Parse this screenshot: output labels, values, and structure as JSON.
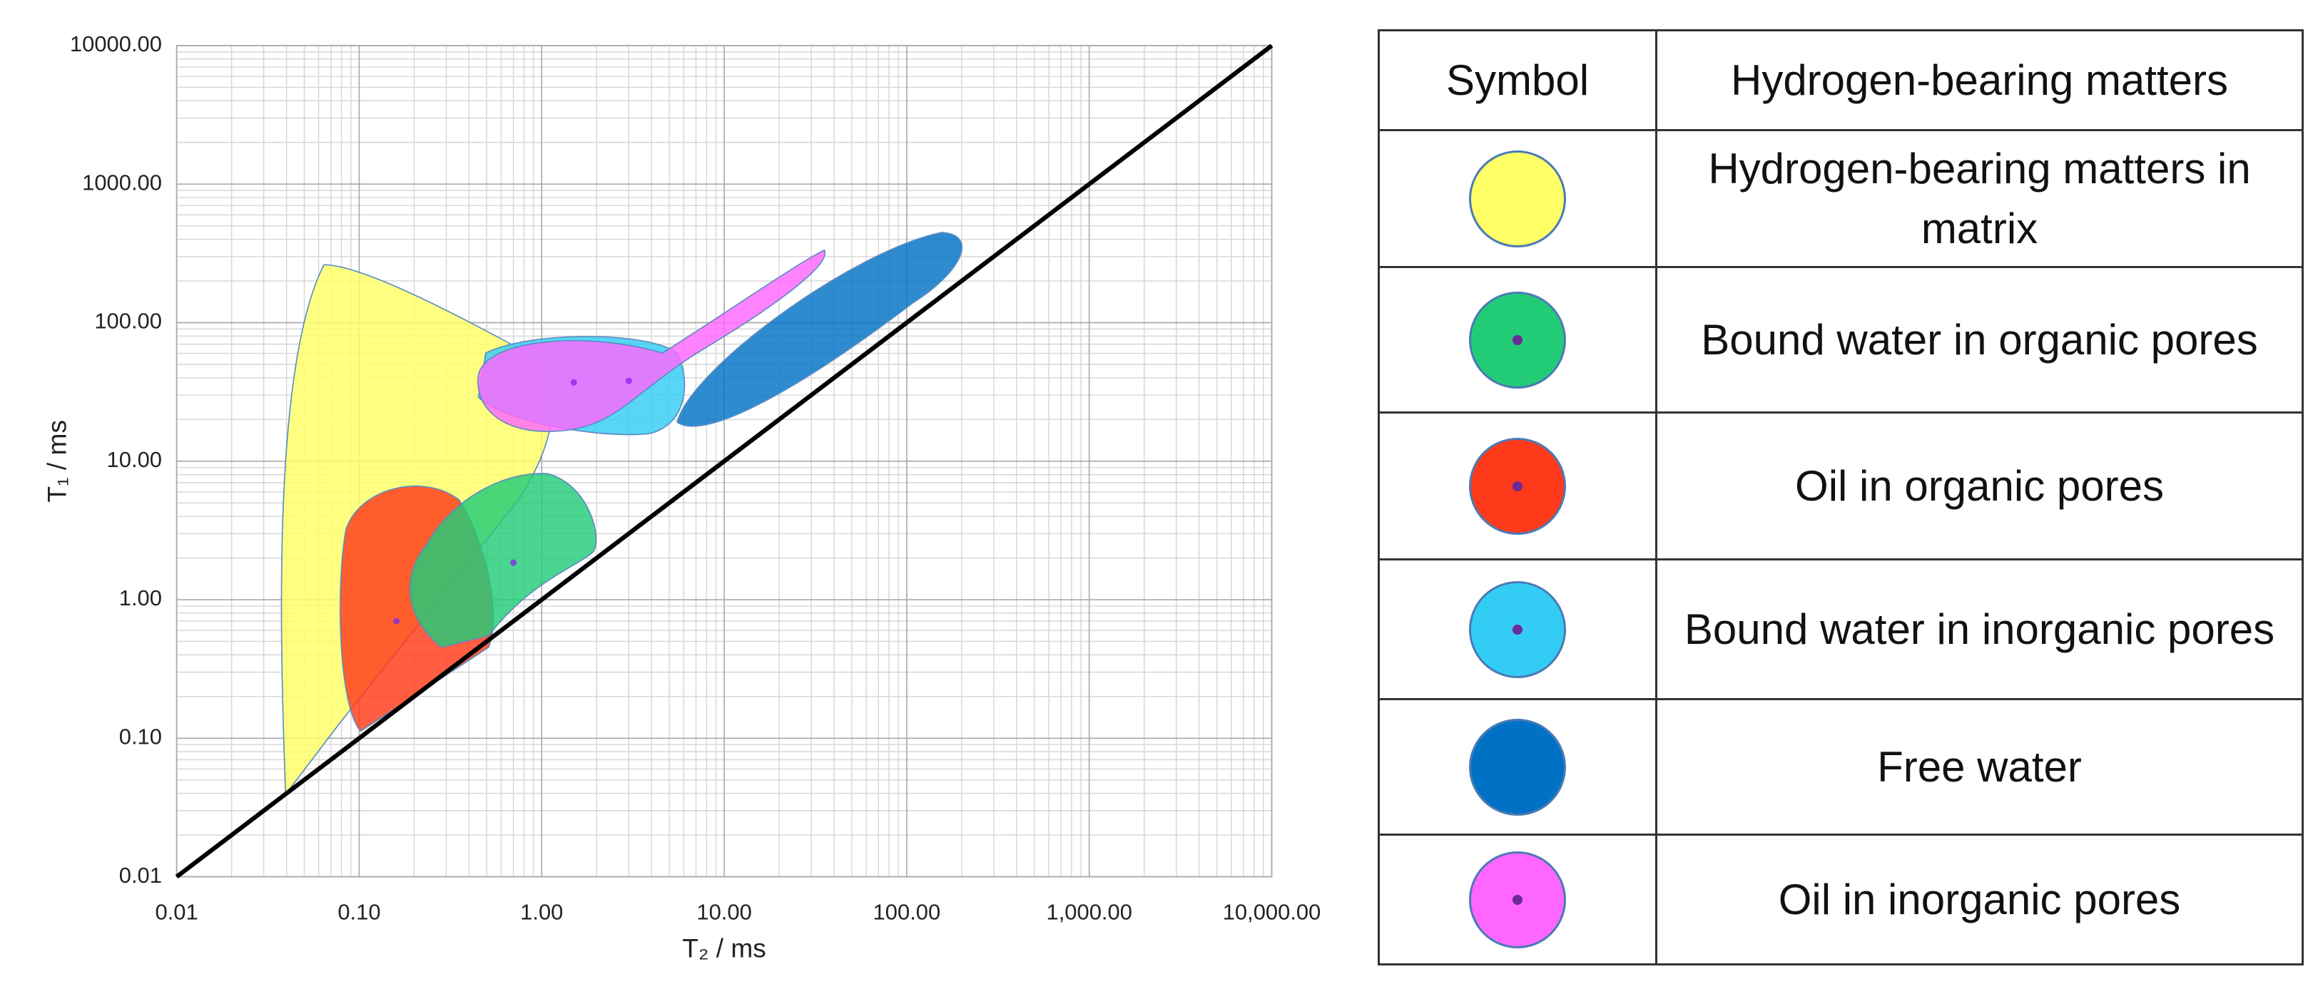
{
  "chart_data": {
    "type": "region",
    "x_label": "T₂ / ms",
    "y_label": "T₁ / ms",
    "log_x": true,
    "log_y": true,
    "grid": true,
    "minor_grid": true,
    "xlim": [
      0.01,
      10000
    ],
    "ylim": [
      0.01,
      10000
    ],
    "xticks": [
      0.01,
      {
        "value": 0.1,
        "label": "0.10"
      },
      {
        "value": 1,
        "label": "1.00"
      },
      {
        "value": 10,
        "label": "10.00"
      },
      {
        "value": 100,
        "label": "100.00"
      },
      {
        "value": 1000,
        "label": "1,000.00"
      },
      {
        "value": 10000,
        "label": "10,000.00"
      }
    ],
    "yticks": [
      0.01,
      {
        "value": 0.1,
        "label": "0.10"
      },
      {
        "value": 1,
        "label": "1.00"
      },
      {
        "value": 10,
        "label": "10.00"
      },
      {
        "value": 100,
        "label": "100.00"
      },
      {
        "value": 1000,
        "label": "1000.00"
      },
      {
        "value": 10000,
        "label": "10000.00"
      }
    ],
    "legend_header": [
      "Symbol",
      "Hydrogen-bearing matters"
    ],
    "series": [
      {
        "name": "Hydrogen-bearing matters in matrix",
        "color": "#ffff66"
      },
      {
        "name": "Bound water in organic pores",
        "color": "#22cc77",
        "x": 0.7,
        "y": 1.85
      },
      {
        "name": "Oil in organic pores",
        "color": "#ff3a1a",
        "x": 0.16,
        "y": 0.7
      },
      {
        "name": "Bound water in inorganic pores",
        "color": "#33ccf5",
        "x": 3,
        "y": 38
      },
      {
        "name": "Free water",
        "color": "#0072c6"
      },
      {
        "name": "Oil in inorganic pores",
        "color": "#ff66ff",
        "x": 1.5,
        "y": 37
      }
    ]
  }
}
